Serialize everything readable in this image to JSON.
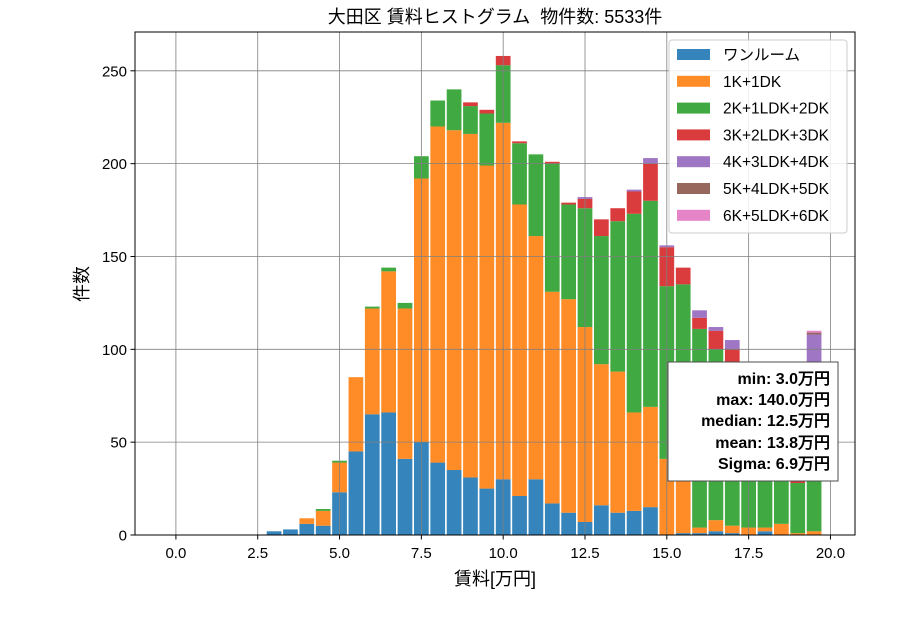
{
  "chart_data": {
    "type": "bar",
    "stacked": true,
    "title": "大田区 賃料ヒストグラム  物件数: 5533件",
    "xlabel": "賃料[万円]",
    "ylabel": "件数",
    "xlim": [
      -1.25,
      20.75
    ],
    "ylim": [
      0,
      270.9
    ],
    "x_ticks": [
      0,
      2.5,
      5,
      7.5,
      10,
      12.5,
      15,
      17.5,
      20
    ],
    "x_tick_labels": [
      "0.0",
      "2.5",
      "5.0",
      "7.5",
      "10.0",
      "12.5",
      "15.0",
      "17.5",
      "20.0"
    ],
    "y_ticks": [
      0,
      50,
      100,
      150,
      200,
      250
    ],
    "y_tick_labels": [
      "0",
      "50",
      "100",
      "150",
      "200",
      "250"
    ],
    "grid": true,
    "legend_position": "top-right",
    "x": [
      3.0,
      3.5,
      4.0,
      4.5,
      5.0,
      5.5,
      6.0,
      6.5,
      7.0,
      7.5,
      8.0,
      8.5,
      9.0,
      9.5,
      10.0,
      10.5,
      11.0,
      11.5,
      12.0,
      12.5,
      13.0,
      13.5,
      14.0,
      14.5,
      15.0,
      15.5,
      16.0,
      16.5,
      17.0,
      17.5,
      18.0,
      18.5,
      19.0,
      19.5
    ],
    "series": [
      {
        "name": "ワンルーム",
        "color": "#1f77b4",
        "values": [
          2,
          3,
          6,
          5,
          23,
          45,
          65,
          66,
          41,
          50,
          39,
          35,
          31,
          25,
          30,
          21,
          30,
          17,
          12,
          7,
          16,
          12,
          13,
          15,
          0,
          1,
          1,
          2,
          1,
          0,
          2,
          0,
          0,
          0
        ]
      },
      {
        "name": "1K+1DK",
        "color": "#ff7f0e",
        "values": [
          0,
          0,
          3,
          8,
          16,
          40,
          57,
          76,
          81,
          142,
          181,
          183,
          185,
          174,
          192,
          157,
          131,
          114,
          115,
          105,
          76,
          76,
          53,
          54,
          41,
          28,
          3,
          6,
          4,
          4,
          2,
          6,
          1,
          2
        ]
      },
      {
        "name": "2K+1LDK+2DK",
        "color": "#2ca02c",
        "values": [
          0,
          0,
          0,
          1,
          1,
          0,
          1,
          2,
          3,
          12,
          14,
          22,
          15,
          28,
          31,
          33,
          44,
          69,
          51,
          64,
          69,
          81,
          107,
          111,
          93,
          106,
          107,
          92,
          87,
          70,
          64,
          48,
          27,
          58
        ]
      },
      {
        "name": "3K+2LDK+3DK",
        "color": "#d62728",
        "values": [
          0,
          0,
          0,
          0,
          0,
          0,
          0,
          0,
          0,
          0,
          0,
          0,
          2,
          2,
          5,
          1,
          0,
          1,
          1,
          5,
          9,
          7,
          12,
          20,
          21,
          9,
          6,
          10,
          8,
          10,
          8,
          9,
          15,
          20
        ]
      },
      {
        "name": "4K+3LDK+4DK",
        "color": "#9467bd",
        "values": [
          0,
          0,
          0,
          0,
          0,
          0,
          0,
          0,
          0,
          0,
          0,
          0,
          0,
          0,
          0,
          0,
          0,
          0,
          0,
          1,
          0,
          0,
          1,
          3,
          1,
          0,
          4,
          2,
          5,
          3,
          2,
          3,
          5,
          28
        ]
      },
      {
        "name": "5K+4LDK+5DK",
        "color": "#8c564b",
        "values": [
          0,
          0,
          0,
          0,
          0,
          0,
          0,
          0,
          0,
          0,
          0,
          0,
          0,
          0,
          0,
          0,
          0,
          0,
          0,
          0,
          0,
          0,
          0,
          0,
          0,
          0,
          0,
          0,
          0,
          0,
          0,
          0,
          0,
          1
        ]
      },
      {
        "name": "6K+5LDK+6DK",
        "color": "#e377c2",
        "values": [
          0,
          0,
          0,
          0,
          0,
          0,
          0,
          0,
          0,
          0,
          0,
          0,
          0,
          0,
          0,
          0,
          0,
          0,
          0,
          0,
          0,
          0,
          0,
          0,
          0,
          0,
          0,
          0,
          0,
          0,
          0,
          0,
          0,
          1
        ]
      }
    ],
    "annotation": {
      "position": "lower-right",
      "lines": [
        "min: 3.0万円",
        "max: 140.0万円",
        "median: 12.5万円",
        "mean: 13.8万円",
        "Sigma: 6.9万円"
      ]
    }
  }
}
